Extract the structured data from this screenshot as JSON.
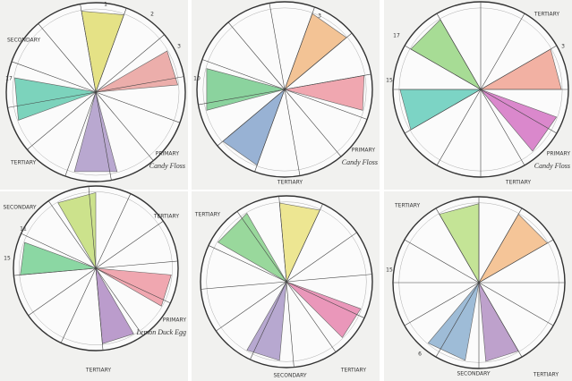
{
  "panels": [
    {
      "labels": [
        "1",
        "2",
        "3",
        "17",
        "SECONDARY",
        "TERTIARY",
        "PRIMARY",
        "Candy Floss"
      ]
    },
    {
      "labels": [
        "3",
        "10",
        "TERTIARY",
        "PRIMARY",
        "Candy Floss"
      ]
    },
    {
      "labels": [
        "17",
        "3",
        "15",
        "TERTIARY",
        "PRIMARY",
        "Candy Floss",
        "TERTIARY"
      ]
    },
    {
      "labels": [
        "11",
        "15",
        "SECONDARY",
        "TERTIARY",
        "PRIMARY",
        "Lemon Duck Egg",
        "TERTIARY"
      ]
    },
    {
      "labels": [
        "SECONDARY",
        "TERTIARY",
        "TERTIARY"
      ]
    },
    {
      "labels": [
        "TERTIARY",
        "15",
        "6",
        "SECONDARY",
        "TERTIARY"
      ]
    }
  ]
}
